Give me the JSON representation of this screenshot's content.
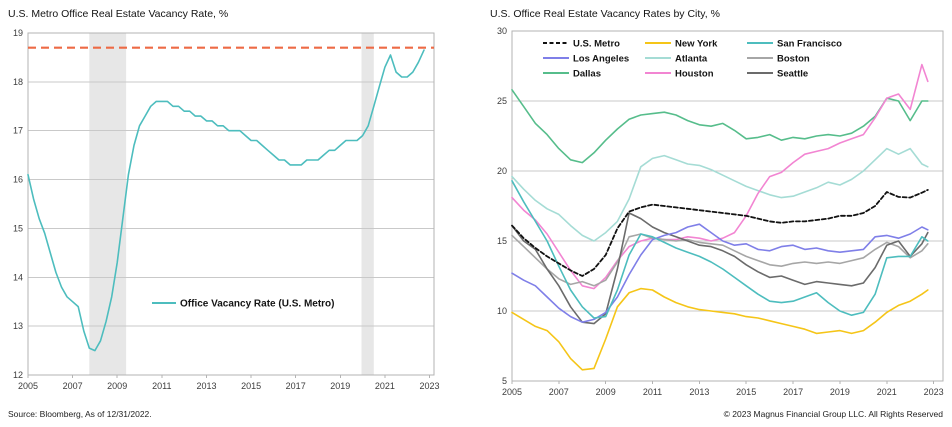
{
  "page": {
    "source_note": "Source: Bloomberg, As of 12/31/2022.",
    "copyright": "© 2023 Magnus Financial Group LLC. All Rights Reserved"
  },
  "colors": {
    "grid": "#c9c9c9",
    "plot_border": "#b3b3b3",
    "recession_band": "#e7e7e7",
    "axis_text": "#3d3d3d",
    "threshold": "#ed6a45",
    "teal": "#4dbdbe"
  },
  "chart_data": [
    {
      "id": "us-metro-vacancy",
      "type": "line",
      "title": "U.S. Metro Office Real Estate Vacancy Rate, %",
      "xlabel": "",
      "ylabel": "",
      "ylim": [
        12,
        19
      ],
      "yticks": [
        12,
        13,
        14,
        15,
        16,
        17,
        18,
        19
      ],
      "xlim": [
        2005,
        2023.2
      ],
      "xticks": [
        2005,
        2007,
        2009,
        2011,
        2013,
        2015,
        2017,
        2019,
        2021,
        2023
      ],
      "grid": "horizontal",
      "x_start": 2005,
      "x_step": 0.25,
      "recession_bands": [
        [
          2007.75,
          2009.4
        ],
        [
          2019.95,
          2020.5
        ]
      ],
      "threshold_line": {
        "value": 18.7,
        "color": "#ed6a45",
        "style": "dashed"
      },
      "legend_position": "inside-center",
      "series": [
        {
          "name": "Office Vacancy Rate (U.S. Metro)",
          "color": "#4dbdbe",
          "dash": null,
          "values": [
            16.1,
            15.6,
            15.2,
            14.9,
            14.5,
            14.1,
            13.8,
            13.6,
            13.5,
            13.4,
            12.9,
            12.55,
            12.5,
            12.7,
            13.1,
            13.6,
            14.3,
            15.2,
            16.1,
            16.7,
            17.1,
            17.3,
            17.5,
            17.6,
            17.6,
            17.6,
            17.5,
            17.5,
            17.4,
            17.4,
            17.3,
            17.3,
            17.2,
            17.2,
            17.1,
            17.1,
            17.0,
            17.0,
            17.0,
            16.9,
            16.8,
            16.8,
            16.7,
            16.6,
            16.5,
            16.4,
            16.4,
            16.3,
            16.3,
            16.3,
            16.4,
            16.4,
            16.4,
            16.5,
            16.6,
            16.6,
            16.7,
            16.8,
            16.8,
            16.8,
            16.9,
            17.1,
            17.5,
            17.9,
            18.3,
            18.55,
            18.2,
            18.1,
            18.1,
            18.2,
            18.4,
            18.65
          ]
        }
      ],
      "legend": [
        "Office Vacancy Rate (U.S. Metro)"
      ]
    },
    {
      "id": "vacancy-by-city",
      "type": "line",
      "title": "U.S. Office Real Estate Vacancy Rates by City, %",
      "xlabel": "",
      "ylabel": "",
      "ylim": [
        5,
        30
      ],
      "yticks": [
        5,
        10,
        15,
        20,
        25,
        30
      ],
      "xlim": [
        2005,
        2023.4
      ],
      "xticks": [
        2005,
        2007,
        2009,
        2011,
        2013,
        2015,
        2017,
        2019,
        2021,
        2023
      ],
      "grid": "horizontal",
      "legend_position": "inside-top",
      "x": [
        2005,
        2005.5,
        2006,
        2006.5,
        2007,
        2007.5,
        2008,
        2008.5,
        2009,
        2009.5,
        2010,
        2010.5,
        2011,
        2011.5,
        2012,
        2012.5,
        2013,
        2013.5,
        2014,
        2014.5,
        2015,
        2015.5,
        2016,
        2016.5,
        2017,
        2017.5,
        2018,
        2018.5,
        2019,
        2019.5,
        2020,
        2020.5,
        2021,
        2021.5,
        2022,
        2022.5,
        2022.75
      ],
      "series": [
        {
          "name": "Dallas",
          "color": "#56bd8b",
          "dash": null,
          "values": [
            25.8,
            24.6,
            23.4,
            22.6,
            21.6,
            20.8,
            20.6,
            21.3,
            22.2,
            23.0,
            23.7,
            24.0,
            24.1,
            24.2,
            24.0,
            23.6,
            23.3,
            23.2,
            23.4,
            22.9,
            22.3,
            22.4,
            22.6,
            22.2,
            22.4,
            22.3,
            22.5,
            22.6,
            22.5,
            22.7,
            23.2,
            23.9,
            25.2,
            25.0,
            23.6,
            25.0,
            25.0
          ]
        },
        {
          "name": "Atlanta",
          "color": "#a5dcd5",
          "dash": null,
          "values": [
            19.6,
            18.7,
            17.9,
            17.3,
            16.9,
            16.1,
            15.4,
            15.0,
            15.6,
            16.4,
            18.0,
            20.3,
            20.9,
            21.1,
            20.8,
            20.5,
            20.4,
            20.1,
            19.7,
            19.3,
            18.9,
            18.6,
            18.3,
            18.1,
            18.2,
            18.5,
            18.8,
            19.2,
            19.0,
            19.4,
            20.0,
            20.8,
            21.6,
            21.2,
            21.6,
            20.5,
            20.3
          ]
        },
        {
          "name": "Houston",
          "color": "#f285d2",
          "dash": null,
          "values": [
            18.1,
            17.2,
            16.5,
            15.5,
            14.2,
            12.9,
            11.8,
            11.6,
            12.4,
            13.6,
            14.6,
            15.0,
            15.2,
            15.1,
            15.1,
            15.3,
            15.2,
            15.0,
            15.2,
            15.6,
            16.8,
            18.4,
            19.6,
            19.9,
            20.6,
            21.2,
            21.4,
            21.6,
            22.0,
            22.3,
            22.6,
            23.8,
            25.2,
            25.5,
            24.4,
            27.6,
            26.4
          ]
        },
        {
          "name": "Boston",
          "color": "#a6a6a6",
          "dash": null,
          "values": [
            15.4,
            14.6,
            13.8,
            13.0,
            12.3,
            11.9,
            12.1,
            11.8,
            12.2,
            13.5,
            15.3,
            15.5,
            15.2,
            15.1,
            15.0,
            15.1,
            14.9,
            14.8,
            14.7,
            14.3,
            13.9,
            13.6,
            13.3,
            13.2,
            13.4,
            13.5,
            13.4,
            13.5,
            13.4,
            13.6,
            13.8,
            14.4,
            14.9,
            14.6,
            13.8,
            14.3,
            14.8
          ]
        },
        {
          "name": "Seattle",
          "color": "#6b6b6b",
          "dash": null,
          "values": [
            16.1,
            15.0,
            14.4,
            13.0,
            11.8,
            10.3,
            9.2,
            9.1,
            9.8,
            13.0,
            17.0,
            16.6,
            16.0,
            15.6,
            15.3,
            15.0,
            14.7,
            14.6,
            14.3,
            13.9,
            13.3,
            12.8,
            12.4,
            12.5,
            12.2,
            11.9,
            12.1,
            12.0,
            11.9,
            11.8,
            12.0,
            13.1,
            14.7,
            15.0,
            13.9,
            14.8,
            15.6
          ]
        },
        {
          "name": "New York",
          "color": "#f5c518",
          "dash": null,
          "values": [
            9.9,
            9.4,
            8.9,
            8.6,
            7.8,
            6.6,
            5.8,
            5.9,
            8.0,
            10.3,
            11.3,
            11.6,
            11.5,
            11.0,
            10.6,
            10.3,
            10.1,
            10.0,
            9.9,
            9.8,
            9.6,
            9.5,
            9.3,
            9.1,
            8.9,
            8.7,
            8.4,
            8.5,
            8.6,
            8.4,
            8.6,
            9.2,
            9.9,
            10.4,
            10.7,
            11.2,
            11.5
          ]
        },
        {
          "name": "Los Angeles",
          "color": "#7f7fe8",
          "dash": null,
          "values": [
            12.7,
            12.2,
            11.8,
            11.0,
            10.2,
            9.6,
            9.2,
            9.4,
            9.9,
            11.0,
            12.6,
            14.0,
            15.1,
            15.4,
            15.6,
            16.0,
            16.2,
            15.6,
            15.0,
            14.7,
            14.8,
            14.4,
            14.3,
            14.6,
            14.7,
            14.4,
            14.5,
            14.3,
            14.2,
            14.3,
            14.4,
            15.3,
            15.4,
            15.2,
            15.5,
            16.0,
            15.8
          ]
        },
        {
          "name": "San Francisco",
          "color": "#4dbdbe",
          "dash": null,
          "values": [
            19.3,
            17.8,
            16.4,
            15.0,
            13.2,
            11.5,
            10.3,
            9.5,
            9.6,
            11.5,
            14.0,
            15.5,
            15.3,
            14.9,
            14.5,
            14.2,
            13.9,
            13.5,
            13.0,
            12.4,
            11.8,
            11.2,
            10.7,
            10.6,
            10.7,
            11.0,
            11.3,
            10.6,
            10.0,
            9.7,
            9.9,
            11.2,
            13.8,
            13.9,
            13.9,
            15.3,
            15.0
          ]
        },
        {
          "name": "U.S. Metro",
          "color": "#111111",
          "dash": "4,2.5",
          "values": [
            16.1,
            15.2,
            14.5,
            13.9,
            13.4,
            12.9,
            12.5,
            13.0,
            14.0,
            15.9,
            17.1,
            17.4,
            17.6,
            17.5,
            17.4,
            17.3,
            17.2,
            17.1,
            17.0,
            16.9,
            16.8,
            16.6,
            16.4,
            16.3,
            16.4,
            16.4,
            16.5,
            16.6,
            16.8,
            16.8,
            17.0,
            17.5,
            18.5,
            18.15,
            18.1,
            18.45,
            18.65
          ]
        }
      ],
      "legend": [
        "U.S. Metro",
        "New York",
        "San Francisco",
        "Los Angeles",
        "Atlanta",
        "Boston",
        "Dallas",
        "Houston",
        "Seattle"
      ]
    }
  ]
}
